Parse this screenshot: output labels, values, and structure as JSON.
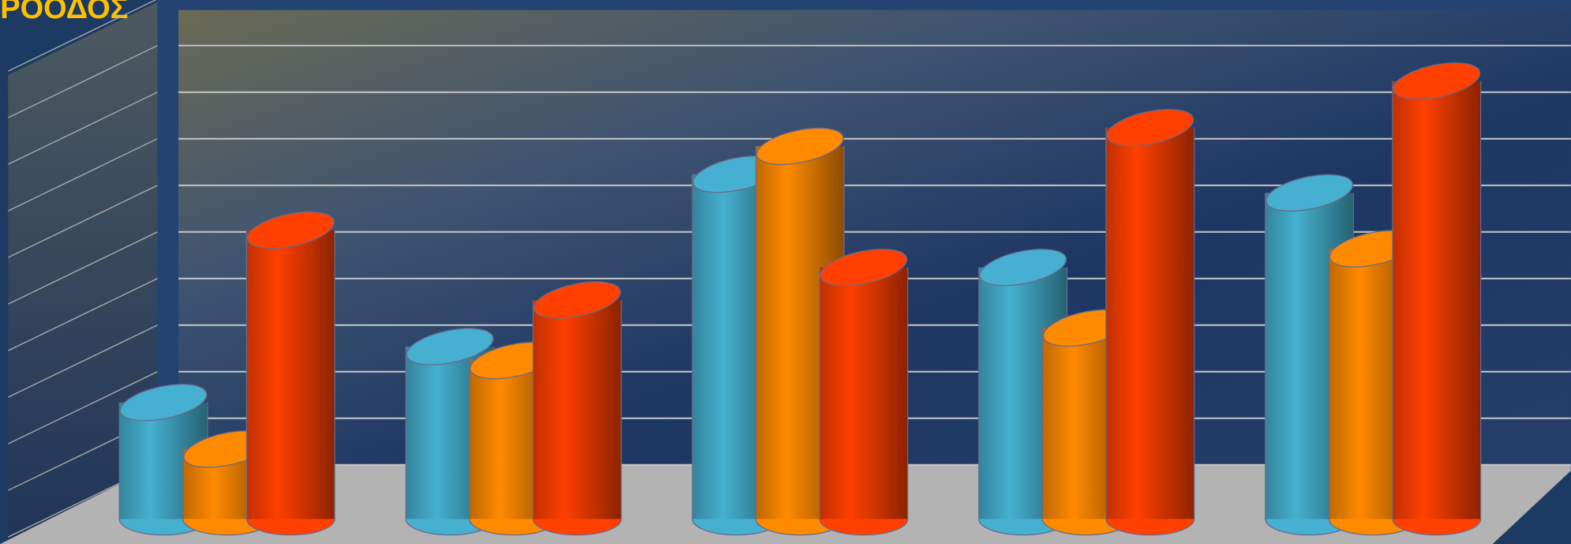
{
  "chart_data": {
    "type": "bar",
    "style": "3d-cylinder",
    "title": "ΡΟΟΔΟΣ",
    "categories": [
      null,
      null,
      null,
      null,
      null
    ],
    "series": [
      {
        "color": "#45b0d0",
        "values": [
          2.5,
          3.7,
          7.4,
          5.4,
          7.0
        ]
      },
      {
        "color": "#ff8a00",
        "values": [
          1.5,
          3.4,
          8.0,
          4.1,
          5.8
        ]
      },
      {
        "color": "#ff4000",
        "values": [
          6.2,
          4.7,
          5.4,
          8.4,
          9.4
        ]
      }
    ],
    "ylim": [
      0,
      10
    ],
    "yticks": [
      0,
      1,
      2,
      3,
      4,
      5,
      6,
      7,
      8,
      9,
      10
    ],
    "grid": true
  }
}
